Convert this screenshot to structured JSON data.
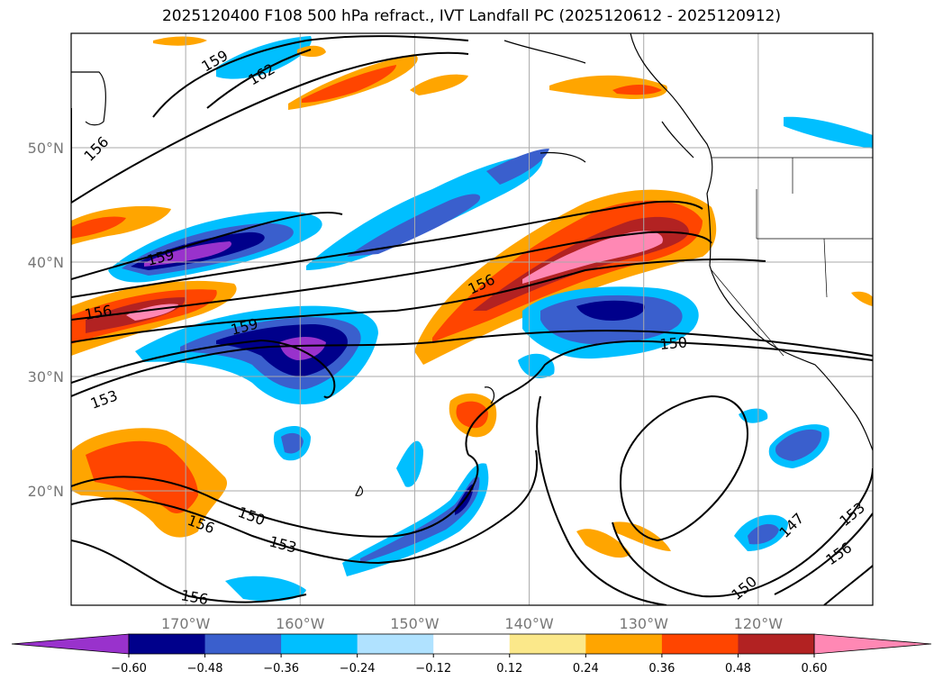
{
  "title": "2025120400 F108 500 hPa refract., IVT Landfall PC (2025120612 - 2025120912)",
  "map": {
    "lon_range": [
      -180,
      -110
    ],
    "lat_range": [
      10,
      60
    ],
    "lon_ticks": [
      {
        "value": -170,
        "label": "170°W"
      },
      {
        "value": -160,
        "label": "160°W"
      },
      {
        "value": -150,
        "label": "150°W"
      },
      {
        "value": -140,
        "label": "140°W"
      },
      {
        "value": -130,
        "label": "130°W"
      },
      {
        "value": -120,
        "label": "120°W"
      }
    ],
    "lat_ticks": [
      {
        "value": 20,
        "label": "20°N"
      },
      {
        "value": 30,
        "label": "30°N"
      },
      {
        "value": 40,
        "label": "40°N"
      },
      {
        "value": 50,
        "label": "50°N"
      }
    ],
    "gridlines": true,
    "contour_labels": [
      "159",
      "162",
      "156",
      "159",
      "156",
      "156",
      "159",
      "153",
      "150",
      "150",
      "153",
      "156",
      "156",
      "147",
      "150",
      "153",
      "156"
    ]
  },
  "colorbar": {
    "ticks": [
      "-0.60",
      "-0.48",
      "-0.36",
      "-0.24",
      "-0.12",
      "0.12",
      "0.24",
      "0.36",
      "0.48",
      "0.60"
    ],
    "colors": [
      "#9932cc",
      "#00008b",
      "#3a5fcd",
      "#00bfff",
      "#b0e2ff",
      "#ffffff",
      "#fbe88a",
      "#ffa500",
      "#ff4500",
      "#b22222",
      "#ff88b4"
    ]
  }
}
